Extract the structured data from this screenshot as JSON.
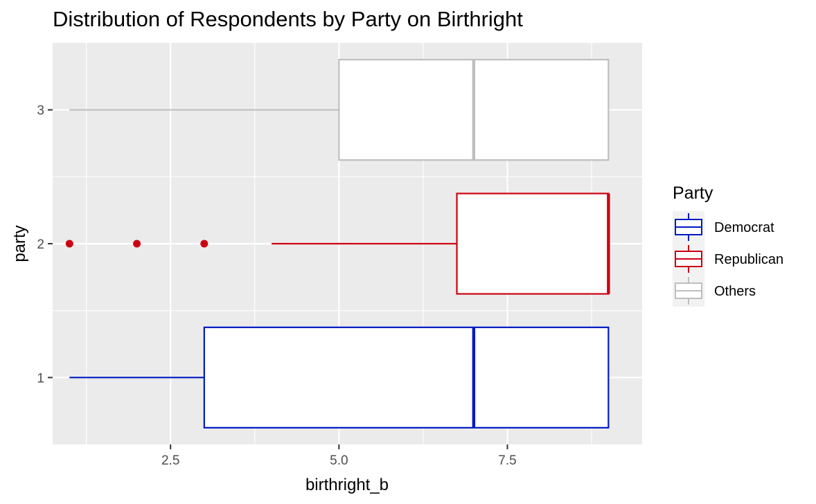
{
  "chart_data": {
    "type": "boxplot",
    "title": "Distribution of Respondents by Party on Birthright",
    "xlabel": "birthright_b",
    "ylabel": "party",
    "xlim": [
      0.75,
      9.5
    ],
    "ylim": [
      0.5,
      3.5
    ],
    "x_ticks": [
      2.5,
      5.0,
      7.5
    ],
    "x_tick_labels": [
      "2.5",
      "5.0",
      "7.5"
    ],
    "y_ticks": [
      1,
      2,
      3
    ],
    "y_tick_labels": [
      "1",
      "2",
      "3"
    ],
    "grid": true,
    "legend": {
      "title": "Party",
      "position": "right",
      "entries": [
        {
          "label": "Democrat",
          "color": "#0019c2"
        },
        {
          "label": "Republican",
          "color": "#cc0011"
        },
        {
          "label": "Others",
          "color": "#bebebe"
        }
      ]
    },
    "series": [
      {
        "party": 1,
        "color": "#0019c2",
        "whisker_low": 1,
        "q1": 3,
        "median": 7,
        "q3": 9,
        "whisker_high": 9,
        "outliers": []
      },
      {
        "party": 2,
        "color": "#cc0011",
        "whisker_low": 4,
        "q1": 6.75,
        "median": 9,
        "q3": 9,
        "whisker_high": 9,
        "outliers": [
          1,
          2,
          3
        ]
      },
      {
        "party": 3,
        "color": "#bebebe",
        "whisker_low": 1,
        "q1": 5,
        "median": 7,
        "q3": 9,
        "whisker_high": 9,
        "outliers": []
      }
    ]
  }
}
